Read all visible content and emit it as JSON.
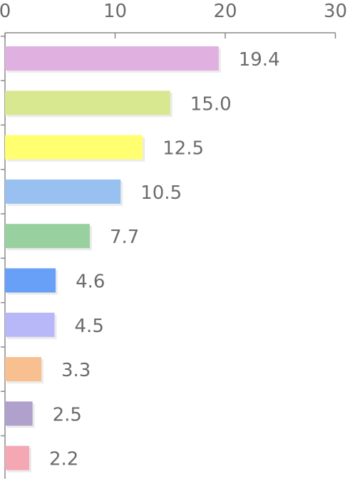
{
  "chart_data": {
    "type": "bar",
    "orientation": "horizontal",
    "categories": [
      "",
      "",
      "",
      "",
      "",
      "",
      "",
      "",
      "",
      ""
    ],
    "values": [
      19.4,
      15.0,
      12.5,
      10.5,
      7.7,
      4.6,
      4.5,
      3.3,
      2.5,
      2.2
    ],
    "value_labels": [
      "19.4",
      "15.0",
      "12.5",
      "10.5",
      "7.7",
      "4.6",
      "4.5",
      "3.3",
      "2.5",
      "2.2"
    ],
    "colors": [
      "#e0b0e0",
      "#d8e890",
      "#ffff70",
      "#98c0f0",
      "#98d0a0",
      "#68a0f8",
      "#b8b8f8",
      "#f8c090",
      "#b0a0cc",
      "#f4a8b4"
    ],
    "xaxis": {
      "position": "top",
      "ticks": [
        0,
        10,
        20,
        30
      ],
      "tick_labels": [
        "0",
        "10",
        "20",
        "30"
      ],
      "range": [
        0,
        30
      ]
    },
    "title": "",
    "xlabel": "",
    "ylabel": "",
    "grid": false,
    "legend": "none"
  }
}
